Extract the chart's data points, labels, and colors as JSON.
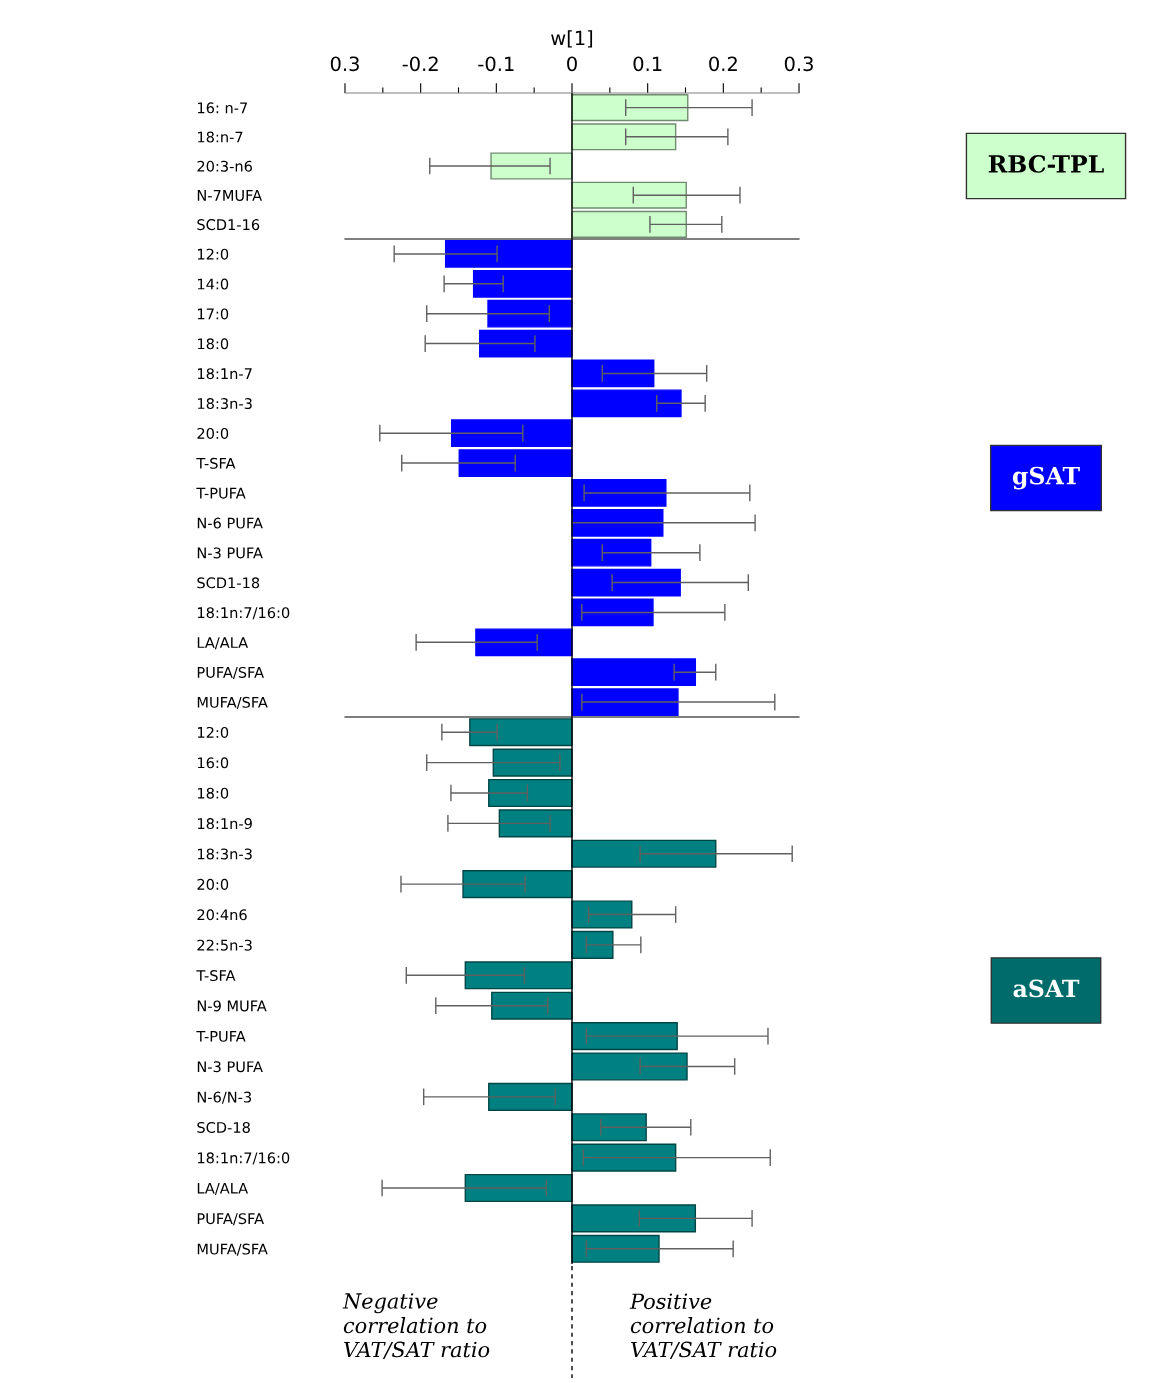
{
  "chart_data": [
    {
      "type": "bar",
      "orientation": "horizontal",
      "xlabel": "w[1]",
      "xlim": [
        -0.3,
        0.3
      ],
      "xticks": [
        {
          "value": -0.3,
          "label": "0.3"
        },
        {
          "value": -0.25,
          "label": null
        },
        -0.2,
        {
          "value": -0.15,
          "label": null
        },
        -0.1,
        {
          "value": -0.05,
          "label": null
        },
        0,
        {
          "value": 0.05,
          "label": null
        },
        0.1,
        {
          "value": 0.15,
          "label": null
        },
        0.2,
        {
          "value": 0.25,
          "label": null
        },
        0.3
      ],
      "categories": [
        "16: n-7",
        "18:n-7",
        "20:3-n6",
        "N-7MUFA",
        "SCD1-16"
      ],
      "series": [
        {
          "name": "RBC-TPL",
          "color": "#ccffcc",
          "values": [
            0.153,
            0.137,
            -0.107,
            0.151,
            0.151
          ],
          "errors": [
            [
              0.071,
              0.238
            ],
            [
              0.071,
              0.206
            ],
            [
              -0.188,
              -0.029
            ],
            [
              0.081,
              0.222
            ],
            [
              0.103,
              0.198
            ]
          ]
        }
      ],
      "ref_lines": [
        {
          "axis": "x",
          "value": 0,
          "color": "#000000",
          "line_style": "solid"
        }
      ],
      "legend": "right",
      "grid": false
    },
    {
      "type": "bar",
      "orientation": "horizontal",
      "xlim": [
        -0.3,
        0.3
      ],
      "tick_labels": "y",
      "categories": [
        "12:0",
        "14:0",
        "17:0",
        "18:0",
        "18:1n-7",
        "18:3n-3",
        "20:0",
        "T-SFA",
        "T-PUFA",
        "N-6 PUFA",
        "N-3 PUFA",
        "SCD1-18",
        "18:1n:7/16:0",
        "LA/ALA",
        "PUFA/SFA",
        "MUFA/SFA"
      ],
      "series": [
        {
          "name": "gSAT",
          "color": "#0000ff",
          "values": [
            -0.167,
            -0.13,
            -0.111,
            -0.122,
            0.108,
            0.144,
            -0.159,
            -0.149,
            0.124,
            0.12,
            0.104,
            0.143,
            0.107,
            -0.127,
            0.163,
            0.14
          ],
          "errors": [
            [
              -0.235,
              -0.099
            ],
            [
              -0.169,
              -0.091
            ],
            [
              -0.192,
              -0.03
            ],
            [
              -0.194,
              -0.049
            ],
            [
              0.04,
              0.178
            ],
            [
              0.112,
              0.176
            ],
            [
              -0.254,
              -0.065
            ],
            [
              -0.225,
              -0.075
            ],
            [
              0.016,
              0.235
            ],
            [
              0.0,
              0.242
            ],
            [
              0.04,
              0.169
            ],
            [
              0.053,
              0.233
            ],
            [
              0.013,
              0.202
            ],
            [
              -0.206,
              -0.046
            ],
            [
              0.135,
              0.19
            ],
            [
              0.013,
              0.268
            ]
          ]
        }
      ],
      "ref_lines": [
        {
          "axis": "x",
          "value": 0,
          "color": "#000000",
          "line_style": "solid"
        }
      ],
      "legend": "right",
      "grid": false
    },
    {
      "type": "bar",
      "orientation": "horizontal",
      "xlim": [
        -0.3,
        0.3
      ],
      "tick_labels": "y",
      "categories": [
        "12:0",
        "16:0",
        "18:0",
        "18:1n-9",
        "18:3n-3",
        "20:0",
        "20:4n6",
        "22:5n-3",
        "T-SFA",
        "N-9 MUFA",
        "T-PUFA",
        "N-3 PUFA",
        "N-6/N-3",
        "SCD-18",
        "18:1n:7/16:0",
        "LA/ALA",
        "PUFA/SFA",
        "MUFA/SFA"
      ],
      "series": [
        {
          "name": "aSAT",
          "color": "#008080",
          "values": [
            -0.135,
            -0.104,
            -0.11,
            -0.096,
            0.19,
            -0.144,
            0.079,
            0.054,
            -0.141,
            -0.106,
            0.139,
            0.152,
            -0.11,
            0.098,
            0.137,
            -0.141,
            0.163,
            0.115
          ],
          "errors": [
            [
              -0.172,
              -0.099
            ],
            [
              -0.192,
              -0.016
            ],
            [
              -0.16,
              -0.059
            ],
            [
              -0.164,
              -0.029
            ],
            [
              0.09,
              0.291
            ],
            [
              -0.226,
              -0.062
            ],
            [
              0.022,
              0.137
            ],
            [
              0.019,
              0.091
            ],
            [
              -0.219,
              -0.063
            ],
            [
              -0.18,
              -0.032
            ],
            [
              0.019,
              0.259
            ],
            [
              0.09,
              0.215
            ],
            [
              -0.196,
              -0.022
            ],
            [
              0.038,
              0.157
            ],
            [
              0.015,
              0.262
            ],
            [
              -0.251,
              -0.034
            ],
            [
              0.089,
              0.238
            ],
            [
              0.019,
              0.213
            ]
          ]
        }
      ],
      "ref_lines": [
        {
          "axis": "x",
          "value": 0,
          "color": "#000000",
          "line_style": "solid"
        }
      ],
      "annotations": [
        "Negative\ncorrelation to\nVAT/SAT ratio",
        "Positive\ncorrelation to\nVAT/SAT ratio"
      ],
      "legend": "right",
      "grid": false
    }
  ]
}
